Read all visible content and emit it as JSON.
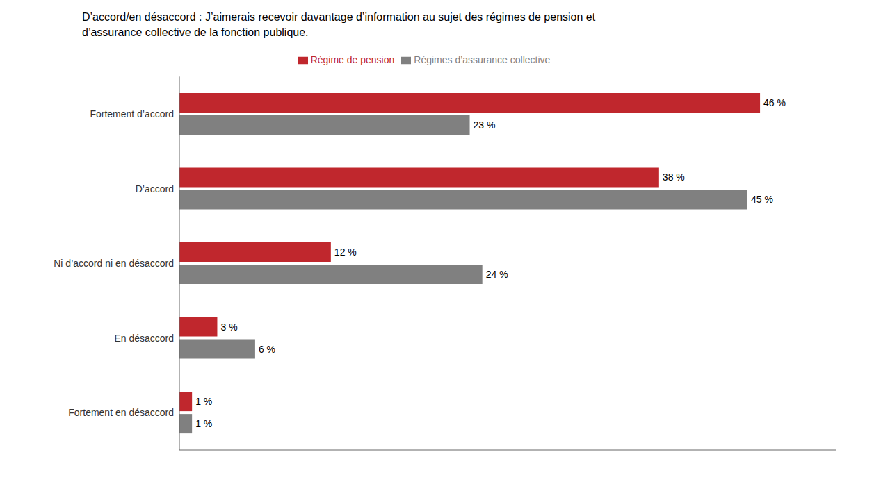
{
  "chart_data": {
    "type": "bar",
    "orientation": "horizontal",
    "title": "D’accord/en désaccord : J’aimerais recevoir davantage d’information au sujet des régimes de pension et\nd’assurance collective de la fonction publique.",
    "categories": [
      "Fortement d’accord",
      "D’accord",
      "Ni d’accord ni en désaccord",
      "En désaccord",
      "Fortement en désaccord"
    ],
    "series": [
      {
        "name": "Régime de pension",
        "color": "#c0272d",
        "values": [
          46,
          38,
          12,
          3,
          1
        ],
        "value_labels": [
          "46 %",
          "38 %",
          "12 %",
          "3 %",
          "1 %"
        ]
      },
      {
        "name": "Régimes d’assurance collective",
        "color": "#808080",
        "values": [
          23,
          45,
          24,
          6,
          1
        ],
        "value_labels": [
          "23 %",
          "45 %",
          "24 %",
          "6 %",
          "1 %"
        ]
      }
    ],
    "xlim": [
      0,
      52
    ],
    "data_labels": true,
    "tick_labels": "y",
    "legend": "top",
    "grid": false
  }
}
